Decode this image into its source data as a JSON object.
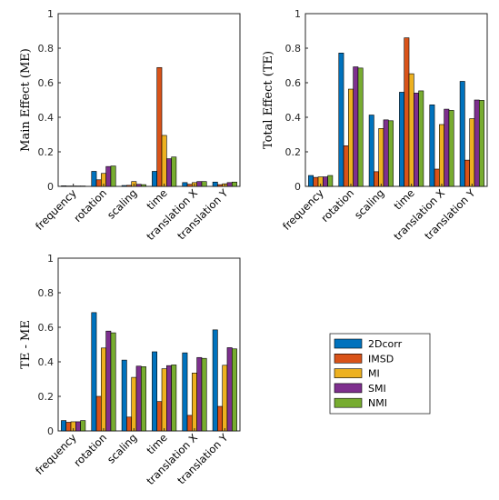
{
  "chart_data": [
    {
      "type": "bar",
      "title": "",
      "xlabel": "",
      "ylabel": "Main Effect (ME)",
      "ylim": [
        0,
        1
      ],
      "yticks": [
        0,
        0.2,
        0.4,
        0.6,
        0.8,
        1
      ],
      "categories": [
        "frequency",
        "rotation",
        "scaling",
        "time",
        "translation X",
        "translation Y"
      ],
      "series": [
        {
          "values": [
            0.003,
            0.087,
            0.005,
            0.087,
            0.022,
            0.025
          ]
        },
        {
          "values": [
            0.002,
            0.038,
            0.006,
            0.688,
            0.012,
            0.01
          ]
        },
        {
          "values": [
            0.002,
            0.075,
            0.028,
            0.295,
            0.022,
            0.015
          ]
        },
        {
          "values": [
            0.002,
            0.115,
            0.012,
            0.16,
            0.028,
            0.022
          ]
        },
        {
          "values": [
            0.002,
            0.118,
            0.01,
            0.17,
            0.028,
            0.025
          ]
        }
      ],
      "grid": false,
      "show_legend": false
    },
    {
      "type": "bar",
      "title": "",
      "xlabel": "",
      "ylabel": "Total Effect (TE)",
      "ylim": [
        0,
        1
      ],
      "yticks": [
        0,
        0.2,
        0.4,
        0.6,
        0.8,
        1
      ],
      "categories": [
        "frequency",
        "rotation",
        "scaling",
        "time",
        "translation X",
        "translation Y"
      ],
      "series": [
        {
          "values": [
            0.063,
            0.772,
            0.413,
            0.545,
            0.472,
            0.608
          ]
        },
        {
          "values": [
            0.052,
            0.235,
            0.085,
            0.86,
            0.1,
            0.152
          ]
        },
        {
          "values": [
            0.055,
            0.563,
            0.335,
            0.652,
            0.358,
            0.392
          ]
        },
        {
          "values": [
            0.055,
            0.692,
            0.385,
            0.54,
            0.447,
            0.5
          ]
        },
        {
          "values": [
            0.063,
            0.685,
            0.38,
            0.553,
            0.44,
            0.498
          ]
        }
      ],
      "grid": false,
      "show_legend": false
    },
    {
      "type": "bar",
      "title": "",
      "xlabel": "",
      "ylabel": "TE - ME",
      "ylim": [
        0,
        1
      ],
      "yticks": [
        0,
        0.2,
        0.4,
        0.6,
        0.8,
        1
      ],
      "categories": [
        "frequency",
        "rotation",
        "scaling",
        "time",
        "translation X",
        "translation Y"
      ],
      "series": [
        {
          "values": [
            0.06,
            0.685,
            0.41,
            0.458,
            0.452,
            0.585
          ]
        },
        {
          "values": [
            0.05,
            0.2,
            0.08,
            0.17,
            0.09,
            0.142
          ]
        },
        {
          "values": [
            0.053,
            0.48,
            0.31,
            0.36,
            0.335,
            0.38
          ]
        },
        {
          "values": [
            0.053,
            0.578,
            0.375,
            0.378,
            0.425,
            0.482
          ]
        },
        {
          "values": [
            0.06,
            0.568,
            0.372,
            0.382,
            0.42,
            0.475
          ]
        }
      ],
      "grid": false,
      "show_legend": false
    }
  ],
  "legend": {
    "placement": "right",
    "entries": [
      "2Dcorr",
      "IMSD",
      "MI",
      "SMI",
      "NMI"
    ]
  },
  "colors": {
    "series": [
      "#0072BD",
      "#D95319",
      "#EDB120",
      "#7E2F8E",
      "#77AC30"
    ],
    "axis": "#262626",
    "bar_edge": "#000000"
  }
}
